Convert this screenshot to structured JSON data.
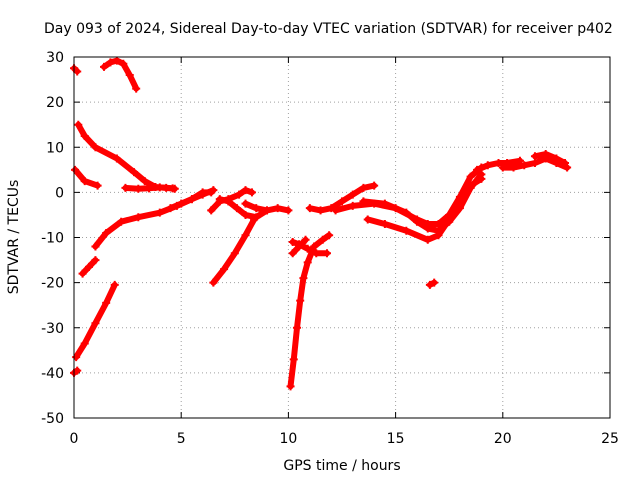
{
  "chart_data": {
    "type": "scatter",
    "title": "Day 093 of 2024, Sidereal Day-to-day VTEC variation (SDTVAR) for receiver p402",
    "xlabel": "GPS time / hours",
    "ylabel": "SDTVAR / TECUs",
    "xlim": [
      0,
      25
    ],
    "ylim": [
      -50,
      30
    ],
    "xticks": [
      "0",
      "5",
      "10",
      "15",
      "20",
      "25"
    ],
    "yticks": [
      "30",
      "20",
      "10",
      "0",
      "-10",
      "-20",
      "-30",
      "-40",
      "-50"
    ],
    "grid": true,
    "marker": "+",
    "color": "#ff0000",
    "series": [
      {
        "name": "s1",
        "x": [
          0.0,
          0.15
        ],
        "y": [
          27.5,
          26.8
        ]
      },
      {
        "name": "s2",
        "x": [
          1.4,
          1.7,
          2.0,
          2.3,
          2.6,
          2.9
        ],
        "y": [
          27.8,
          28.8,
          29.2,
          28.5,
          26.0,
          23.0
        ]
      },
      {
        "name": "s3",
        "x": [
          0.2,
          0.5,
          1.0,
          2.0,
          2.8,
          3.3,
          3.8,
          4.3,
          4.7
        ],
        "y": [
          15.0,
          12.5,
          10.0,
          7.5,
          4.5,
          2.5,
          1.2,
          1.0,
          0.8
        ]
      },
      {
        "name": "s4",
        "x": [
          0.05,
          0.5,
          1.1
        ],
        "y": [
          5.0,
          2.5,
          1.5
        ]
      },
      {
        "name": "s5",
        "x": [
          2.4,
          3.0,
          3.5,
          4.0,
          4.6
        ],
        "y": [
          1.0,
          0.8,
          0.9,
          1.1,
          0.9
        ]
      },
      {
        "name": "s6",
        "x": [
          1.0,
          1.5,
          2.2,
          3.0,
          4.0,
          4.8,
          5.5,
          6.0,
          6.4
        ],
        "y": [
          -12.0,
          -9.0,
          -6.5,
          -5.5,
          -4.5,
          -3.0,
          -1.5,
          0.0,
          0.0
        ]
      },
      {
        "name": "s7",
        "x": [
          0.4,
          0.7,
          1.0
        ],
        "y": [
          -18.0,
          -16.5,
          -15.0
        ]
      },
      {
        "name": "s8",
        "x": [
          0.1,
          0.5,
          1.0,
          1.5,
          1.9
        ],
        "y": [
          -36.5,
          -33.5,
          -29.0,
          -24.5,
          -20.5
        ]
      },
      {
        "name": "s9",
        "x": [
          0.0,
          0.15
        ],
        "y": [
          -40.0,
          -39.5
        ]
      },
      {
        "name": "s10",
        "x": [
          4.5,
          5.0,
          5.5,
          6.0,
          6.5
        ],
        "y": [
          -3.5,
          -2.5,
          -1.5,
          -0.5,
          0.5
        ]
      },
      {
        "name": "s11",
        "x": [
          6.4,
          6.8,
          7.2,
          7.7,
          8.0,
          8.3
        ],
        "y": [
          -4.0,
          -2.0,
          -1.5,
          -0.5,
          0.5,
          0.0
        ]
      },
      {
        "name": "s12",
        "x": [
          6.8,
          7.2,
          7.6,
          8.0,
          8.5,
          9.0
        ],
        "y": [
          -1.5,
          -2.0,
          -3.5,
          -5.0,
          -5.5,
          -4.0
        ]
      },
      {
        "name": "s13",
        "x": [
          6.5,
          7.0,
          7.5,
          8.0,
          8.4
        ],
        "y": [
          -20.0,
          -17.0,
          -13.5,
          -9.5,
          -6.0
        ]
      },
      {
        "name": "s14",
        "x": [
          8.0,
          8.5,
          9.0,
          9.5,
          10.0
        ],
        "y": [
          -2.5,
          -3.5,
          -4.0,
          -3.5,
          -4.0
        ]
      },
      {
        "name": "s15",
        "x": [
          10.1,
          10.25,
          10.4,
          10.55,
          10.7,
          10.9,
          11.2,
          11.6,
          11.9
        ],
        "y": [
          -43.0,
          -37.0,
          -30.0,
          -24.0,
          -19.0,
          -15.5,
          -12.0,
          -10.5,
          -9.5
        ]
      },
      {
        "name": "s16",
        "x": [
          10.2,
          10.5,
          10.9,
          11.3,
          11.8
        ],
        "y": [
          -11.0,
          -11.5,
          -12.5,
          -13.5,
          -13.5
        ]
      },
      {
        "name": "s17",
        "x": [
          10.2,
          10.5,
          10.8
        ],
        "y": [
          -13.5,
          -12.0,
          -10.5
        ]
      },
      {
        "name": "s18",
        "x": [
          11.0,
          11.5,
          12.0,
          12.5,
          13.0,
          13.5,
          14.0
        ],
        "y": [
          -3.5,
          -4.0,
          -3.5,
          -2.0,
          -0.5,
          1.0,
          1.5
        ]
      },
      {
        "name": "s19",
        "x": [
          12.2,
          13.0,
          14.0,
          15.0,
          16.0,
          16.5,
          17.0,
          17.5,
          18.0,
          18.5,
          19.0
        ],
        "y": [
          -4.0,
          -3.0,
          -2.5,
          -3.5,
          -6.0,
          -7.0,
          -7.0,
          -5.0,
          -1.0,
          3.5,
          5.5
        ]
      },
      {
        "name": "s20",
        "x": [
          13.5,
          14.5,
          15.5,
          16.0,
          16.5,
          17.0,
          17.5,
          18.0,
          18.5,
          19.0
        ],
        "y": [
          -2.0,
          -2.5,
          -4.5,
          -6.5,
          -8.0,
          -8.5,
          -6.5,
          -3.5,
          1.0,
          4.0
        ]
      },
      {
        "name": "s21",
        "x": [
          13.7,
          14.5,
          15.5,
          16.5,
          17.0,
          17.5,
          18.0,
          18.5,
          19.0
        ],
        "y": [
          -6.0,
          -7.0,
          -8.5,
          -10.5,
          -9.5,
          -6.0,
          -2.0,
          1.5,
          3.0
        ]
      },
      {
        "name": "s22",
        "x": [
          16.6,
          16.8
        ],
        "y": [
          -20.5,
          -20.0
        ]
      },
      {
        "name": "s23",
        "x": [
          18.8,
          19.3,
          19.8,
          20.2,
          20.8
        ],
        "y": [
          5.0,
          6.0,
          6.5,
          6.5,
          7.0
        ]
      },
      {
        "name": "s24",
        "x": [
          20.0,
          20.5,
          21.0,
          21.5,
          22.0,
          22.5,
          23.0
        ],
        "y": [
          5.5,
          5.5,
          6.0,
          6.5,
          7.5,
          6.5,
          5.5
        ]
      },
      {
        "name": "s25",
        "x": [
          21.5,
          22.0,
          22.5,
          22.9
        ],
        "y": [
          8.0,
          8.5,
          7.5,
          6.5
        ]
      }
    ]
  }
}
